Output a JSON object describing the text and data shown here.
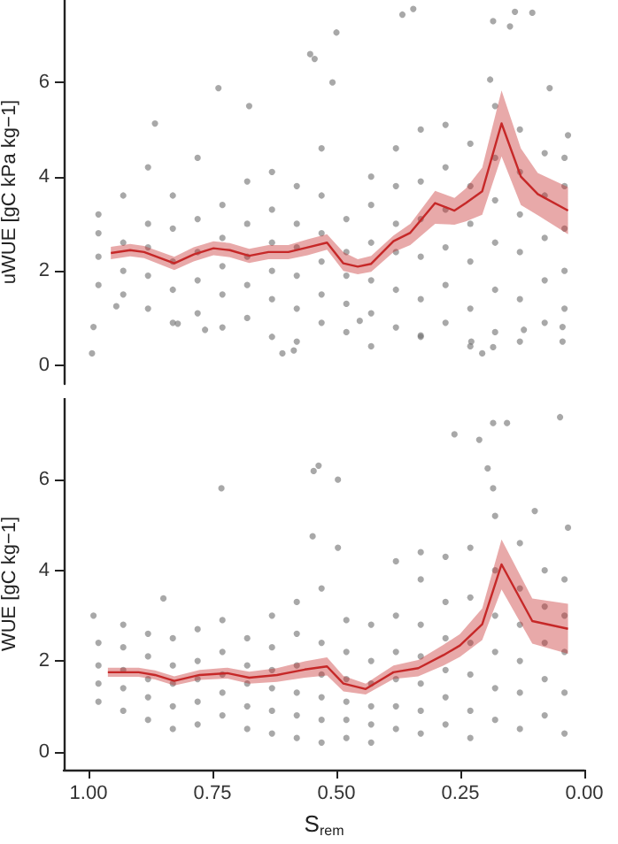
{
  "chart_data": [
    {
      "type": "scatter",
      "ylabel": "uWUE [gC kPa kg−1]",
      "xlim": [
        1.05,
        0
      ],
      "ylim": [
        -0.4,
        7.75
      ],
      "yticks": [
        0,
        2,
        4,
        6
      ],
      "tick_labels": "y",
      "series": [
        {
          "marker": "circle",
          "color": "#6e6e6e",
          "x": [
            0.993,
            0.345,
            0.367,
            0.15,
            0.14,
            0.105,
            0.184,
            0.553,
            0.544,
            0.5,
            0.738,
            0.676,
            0.866,
            0.508,
            0.19,
            0.07,
            0.033,
            0.044,
            0.044,
            0.122,
            0.609,
            0.586,
            0.453,
            0.33,
            0.206,
            0.184,
            0.228,
            0.82,
            0.765,
            0.99,
            0.944,
            0.98,
            0.98,
            0.98,
            0.98,
            0.93,
            0.93,
            0.93,
            0.93,
            0.88,
            0.88,
            0.88,
            0.88,
            0.88,
            0.83,
            0.83,
            0.83,
            0.83,
            0.83,
            0.78,
            0.78,
            0.78,
            0.78,
            0.78,
            0.73,
            0.73,
            0.73,
            0.73,
            0.73,
            0.68,
            0.68,
            0.68,
            0.68,
            0.68,
            0.63,
            0.63,
            0.63,
            0.63,
            0.63,
            0.63,
            0.58,
            0.58,
            0.58,
            0.58,
            0.58,
            0.58,
            0.53,
            0.53,
            0.53,
            0.53,
            0.53,
            0.53,
            0.48,
            0.48,
            0.48,
            0.48,
            0.48,
            0.43,
            0.43,
            0.43,
            0.43,
            0.43,
            0.43,
            0.38,
            0.38,
            0.38,
            0.38,
            0.38,
            0.38,
            0.33,
            0.33,
            0.33,
            0.33,
            0.33,
            0.33,
            0.28,
            0.28,
            0.28,
            0.28,
            0.28,
            0.28,
            0.23,
            0.23,
            0.23,
            0.23,
            0.23,
            0.23,
            0.18,
            0.18,
            0.18,
            0.18,
            0.18,
            0.18,
            0.13,
            0.13,
            0.13,
            0.13,
            0.13,
            0.13,
            0.08,
            0.08,
            0.08,
            0.08,
            0.08,
            0.04,
            0.04,
            0.04,
            0.04,
            0.04
          ],
          "values": [
            0.25,
            7.56,
            7.44,
            7.19,
            7.5,
            7.48,
            7.3,
            6.6,
            6.5,
            7.06,
            5.88,
            5.5,
            5.13,
            6.0,
            6.06,
            5.88,
            4.88,
            0.5,
            0.81,
            0.75,
            0.25,
            0.31,
            0.94,
            0.63,
            0.25,
            0.38,
            0.5,
            0.88,
            0.75,
            0.81,
            1.25,
            1.7,
            2.3,
            2.8,
            3.2,
            1.5,
            2.0,
            2.6,
            3.6,
            1.2,
            1.9,
            2.5,
            3.0,
            4.2,
            0.9,
            1.6,
            2.2,
            2.9,
            3.6,
            1.1,
            1.8,
            2.4,
            3.1,
            4.4,
            0.8,
            1.5,
            2.1,
            2.7,
            3.4,
            1.0,
            1.7,
            2.3,
            3.0,
            3.9,
            0.6,
            1.4,
            2.0,
            2.6,
            3.3,
            4.1,
            0.5,
            1.2,
            1.9,
            2.5,
            3.0,
            3.8,
            0.9,
            1.5,
            2.2,
            2.8,
            3.6,
            4.6,
            0.7,
            1.3,
            1.9,
            2.4,
            3.1,
            0.4,
            1.1,
            1.8,
            2.6,
            3.4,
            4.0,
            0.8,
            1.6,
            2.4,
            3.0,
            3.8,
            4.6,
            0.6,
            1.4,
            2.3,
            3.1,
            3.9,
            5.0,
            0.9,
            1.7,
            2.5,
            3.3,
            4.2,
            5.1,
            0.4,
            1.2,
            2.2,
            3.0,
            3.8,
            4.7,
            0.7,
            1.6,
            2.6,
            3.5,
            4.4,
            5.5,
            0.5,
            1.4,
            2.4,
            3.2,
            4.1,
            5.0,
            0.9,
            1.8,
            2.7,
            3.6,
            4.5,
            1.2,
            2.0,
            2.9,
            3.8,
            4.4
          ]
        },
        {
          "type": "line",
          "color": "#c62828",
          "x": [
            0.955,
            0.916,
            0.888,
            0.827,
            0.788,
            0.748,
            0.715,
            0.676,
            0.637,
            0.597,
            0.558,
            0.519,
            0.486,
            0.457,
            0.43,
            0.385,
            0.351,
            0.301,
            0.262,
            0.239,
            0.206,
            0.167,
            0.128,
            0.094,
            0.033
          ],
          "values": [
            2.38,
            2.44,
            2.4,
            2.16,
            2.35,
            2.48,
            2.44,
            2.32,
            2.4,
            2.4,
            2.5,
            2.6,
            2.16,
            2.09,
            2.15,
            2.63,
            2.81,
            3.44,
            3.28,
            3.44,
            3.69,
            5.13,
            4.0,
            3.63,
            3.28
          ],
          "lower": [
            2.25,
            2.31,
            2.27,
            2.02,
            2.2,
            2.33,
            2.29,
            2.17,
            2.25,
            2.25,
            2.33,
            2.45,
            2.0,
            1.93,
            1.98,
            2.4,
            2.55,
            3.0,
            2.98,
            3.05,
            3.19,
            4.43,
            3.4,
            3.18,
            2.78
          ],
          "upper": [
            2.51,
            2.57,
            2.53,
            2.3,
            2.5,
            2.63,
            2.59,
            2.47,
            2.55,
            2.55,
            2.67,
            2.78,
            2.4,
            2.25,
            2.32,
            2.75,
            3.0,
            3.7,
            3.55,
            3.75,
            4.19,
            5.83,
            4.6,
            4.08,
            3.78
          ]
        }
      ]
    },
    {
      "type": "scatter",
      "xlabel": "S$_{rem}$",
      "ylabel": "WUE [gC kg−1]",
      "xlim": [
        1.05,
        0
      ],
      "ylim": [
        -0.4,
        7.8
      ],
      "xticks": [
        {
          "value": 1,
          "label": "1.00"
        },
        0.75,
        {
          "value": 0.5,
          "label": "0.50"
        },
        0.25,
        {
          "value": 0,
          "label": "0.00"
        }
      ],
      "yticks": [
        0,
        2,
        4,
        6
      ],
      "series": [
        {
          "marker": "circle",
          "color": "#6e6e6e",
          "x": [
            0.536,
            0.546,
            0.497,
            0.732,
            0.262,
            0.184,
            0.156,
            0.212,
            0.195,
            0.184,
            0.049,
            0.033,
            0.1,
            0.548,
            0.497,
            0.849,
            0.99,
            0.98,
            0.98,
            0.98,
            0.98,
            0.93,
            0.93,
            0.93,
            0.93,
            0.93,
            0.88,
            0.88,
            0.88,
            0.88,
            0.88,
            0.83,
            0.83,
            0.83,
            0.83,
            0.83,
            0.78,
            0.78,
            0.78,
            0.78,
            0.78,
            0.73,
            0.73,
            0.73,
            0.73,
            0.73,
            0.68,
            0.68,
            0.68,
            0.68,
            0.68,
            0.63,
            0.63,
            0.63,
            0.63,
            0.63,
            0.63,
            0.58,
            0.58,
            0.58,
            0.58,
            0.58,
            0.58,
            0.53,
            0.53,
            0.53,
            0.53,
            0.53,
            0.53,
            0.48,
            0.48,
            0.48,
            0.48,
            0.48,
            0.48,
            0.43,
            0.43,
            0.43,
            0.43,
            0.43,
            0.43,
            0.38,
            0.38,
            0.38,
            0.38,
            0.38,
            0.38,
            0.33,
            0.33,
            0.33,
            0.33,
            0.33,
            0.33,
            0.33,
            0.28,
            0.28,
            0.28,
            0.28,
            0.28,
            0.28,
            0.23,
            0.23,
            0.23,
            0.23,
            0.23,
            0.23,
            0.18,
            0.18,
            0.18,
            0.18,
            0.18,
            0.18,
            0.13,
            0.13,
            0.13,
            0.13,
            0.13,
            0.13,
            0.08,
            0.08,
            0.08,
            0.08,
            0.08,
            0.04,
            0.04,
            0.04,
            0.04,
            0.04
          ],
          "values": [
            6.31,
            6.19,
            6.0,
            5.81,
            7.0,
            7.25,
            7.25,
            6.88,
            6.25,
            5.81,
            7.38,
            4.94,
            5.31,
            4.75,
            4.5,
            3.38,
            3.0,
            1.1,
            1.5,
            1.9,
            2.4,
            0.9,
            1.4,
            1.8,
            2.3,
            2.8,
            0.7,
            1.2,
            1.6,
            2.1,
            2.6,
            0.5,
            1.0,
            1.5,
            1.9,
            2.5,
            0.6,
            1.1,
            1.6,
            2.0,
            2.7,
            0.8,
            1.3,
            1.7,
            2.2,
            2.9,
            0.5,
            1.0,
            1.5,
            1.9,
            2.5,
            0.4,
            0.9,
            1.4,
            1.8,
            2.3,
            3.0,
            0.3,
            0.8,
            1.3,
            1.9,
            2.6,
            3.3,
            0.2,
            0.7,
            1.2,
            1.7,
            2.4,
            3.6,
            0.3,
            0.7,
            1.1,
            1.6,
            2.2,
            2.9,
            0.2,
            0.6,
            1.0,
            1.5,
            2.0,
            2.8,
            0.5,
            1.0,
            1.6,
            2.2,
            3.0,
            4.2,
            0.4,
            0.9,
            1.5,
            2.1,
            2.8,
            3.8,
            4.4,
            0.6,
            1.2,
            1.8,
            2.5,
            3.3,
            4.3,
            0.3,
            0.9,
            1.7,
            2.4,
            3.4,
            4.5,
            0.7,
            1.4,
            2.2,
            3.0,
            4.0,
            5.2,
            0.5,
            1.3,
            2.0,
            2.8,
            3.6,
            4.6,
            0.8,
            1.6,
            2.4,
            3.2,
            4.0,
            0.4,
            1.3,
            2.2,
            3.0,
            3.8
          ]
        },
        {
          "type": "line",
          "color": "#c62828",
          "x": [
            0.961,
            0.899,
            0.866,
            0.827,
            0.776,
            0.72,
            0.676,
            0.62,
            0.564,
            0.519,
            0.486,
            0.441,
            0.385,
            0.335,
            0.284,
            0.251,
            0.206,
            0.167,
            0.105,
            0.033
          ],
          "values": [
            1.75,
            1.75,
            1.69,
            1.56,
            1.69,
            1.73,
            1.63,
            1.69,
            1.81,
            1.88,
            1.5,
            1.38,
            1.75,
            1.84,
            2.13,
            2.34,
            2.81,
            4.13,
            2.88,
            2.71
          ],
          "lower": [
            1.65,
            1.65,
            1.59,
            1.46,
            1.58,
            1.61,
            1.5,
            1.54,
            1.63,
            1.68,
            1.33,
            1.26,
            1.6,
            1.66,
            1.9,
            2.09,
            2.46,
            3.58,
            2.38,
            2.16
          ],
          "upper": [
            1.85,
            1.85,
            1.79,
            1.66,
            1.8,
            1.85,
            1.76,
            1.84,
            1.99,
            2.08,
            1.67,
            1.5,
            1.9,
            2.02,
            2.36,
            2.59,
            3.16,
            4.68,
            3.38,
            3.26
          ]
        }
      ]
    }
  ]
}
